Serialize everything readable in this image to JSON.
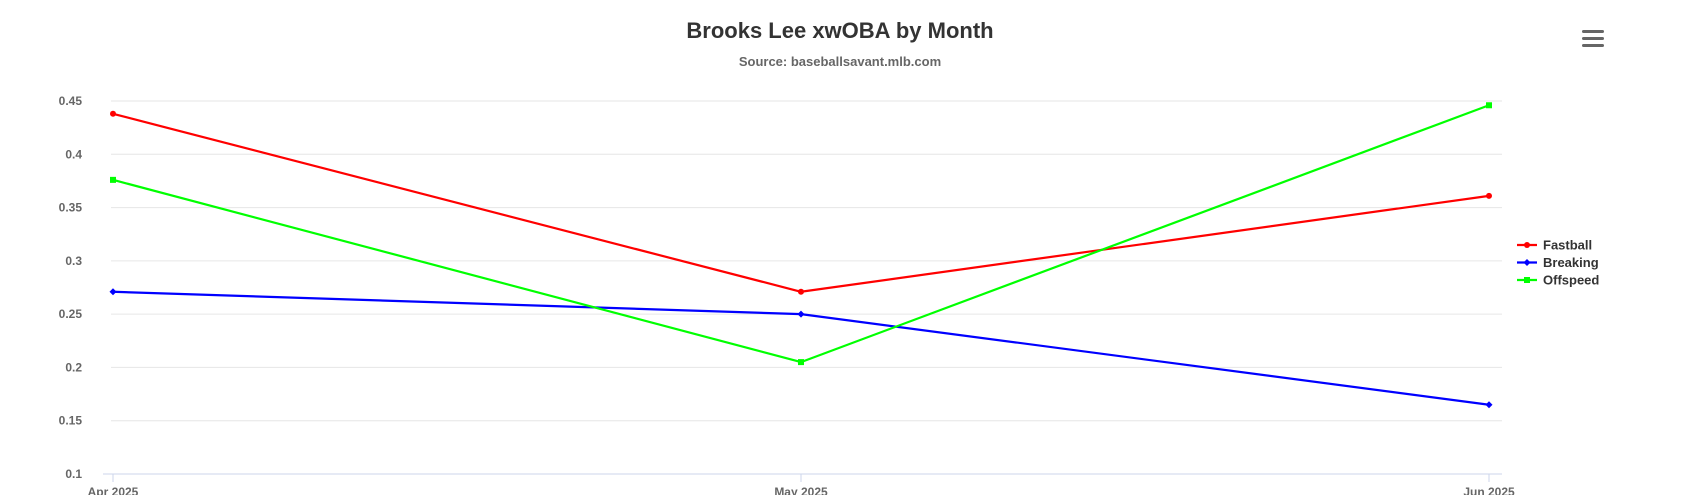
{
  "chart_data": {
    "type": "line",
    "title": "Brooks Lee xwOBA by Month",
    "subtitle": "Source: baseballsavant.mlb.com",
    "xlabel": "",
    "ylabel": "",
    "categories": [
      "Apr 2025",
      "May 2025",
      "Jun 2025"
    ],
    "ylim": [
      0.1,
      0.45
    ],
    "yticks": [
      0.1,
      0.15,
      0.2,
      0.25,
      0.3,
      0.35,
      0.4,
      0.45
    ],
    "ytick_labels": [
      "0.1",
      "0.15",
      "0.2",
      "0.25",
      "0.3",
      "0.35",
      "0.4",
      "0.45"
    ],
    "grid": true,
    "legend_position": "right",
    "series": [
      {
        "name": "Fastball",
        "color": "#ff0000",
        "marker": "circle",
        "values": [
          0.438,
          0.271,
          0.361
        ]
      },
      {
        "name": "Breaking",
        "color": "#0000ff",
        "marker": "diamond",
        "values": [
          0.271,
          0.25,
          0.165
        ]
      },
      {
        "name": "Offspeed",
        "color": "#00ff00",
        "marker": "square",
        "values": [
          0.376,
          0.205,
          0.446
        ]
      }
    ]
  },
  "menu": {
    "icon": "hamburger-menu-icon"
  }
}
